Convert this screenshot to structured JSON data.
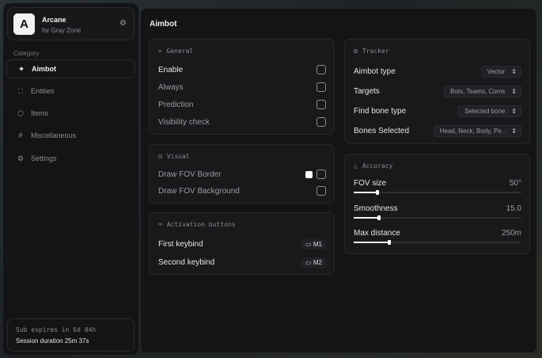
{
  "sidebar": {
    "app_name": "Arcane",
    "app_sub": "for Gray Zone",
    "logo": "A",
    "category_label": "Category",
    "items": [
      {
        "label": "Aimbot",
        "icon": "crosshair-icon",
        "active": true
      },
      {
        "label": "Entities",
        "icon": "entity-icon"
      },
      {
        "label": "Items",
        "icon": "box-icon"
      },
      {
        "label": "Miscellaneous",
        "icon": "hash-icon"
      },
      {
        "label": "Settings",
        "icon": "gear-icon"
      }
    ],
    "sub_expires": "Sub expires in 6d 04h",
    "session": "Session duration 25m 37s"
  },
  "main": {
    "title": "Aimbot",
    "general": {
      "title": "General",
      "rows": [
        {
          "label": "Enable",
          "checked": false
        },
        {
          "label": "Always",
          "checked": false
        },
        {
          "label": "Prediction",
          "checked": false
        },
        {
          "label": "Visibility check",
          "checked": false
        }
      ]
    },
    "visual": {
      "title": "Visual",
      "rows": [
        {
          "label": "Draw FOV Border",
          "checked": false,
          "color": "#ffffff"
        },
        {
          "label": "Draw FOV Background",
          "checked": false
        }
      ]
    },
    "activation": {
      "title": "Activation buttons",
      "rows": [
        {
          "label": "First keybind",
          "key": "M1"
        },
        {
          "label": "Second keybind",
          "key": "M2"
        }
      ]
    },
    "tracker": {
      "title": "Tracker",
      "rows": [
        {
          "label": "Aimbot type",
          "value": "Vector"
        },
        {
          "label": "Targets",
          "value": "Bots, Teams, Coms"
        },
        {
          "label": "Find bone type",
          "value": "Selected bone"
        },
        {
          "label": "Bones Selected",
          "value": "Head, Neck, Body, Pe.."
        }
      ]
    },
    "accuracy": {
      "title": "Accuracy",
      "sliders": [
        {
          "label": "FOV size",
          "value": "50°",
          "fraction": 0.14
        },
        {
          "label": "Smoothness",
          "value": "15.0",
          "fraction": 0.15
        },
        {
          "label": "Max distance",
          "value": "250m",
          "fraction": 0.21
        }
      ]
    }
  }
}
